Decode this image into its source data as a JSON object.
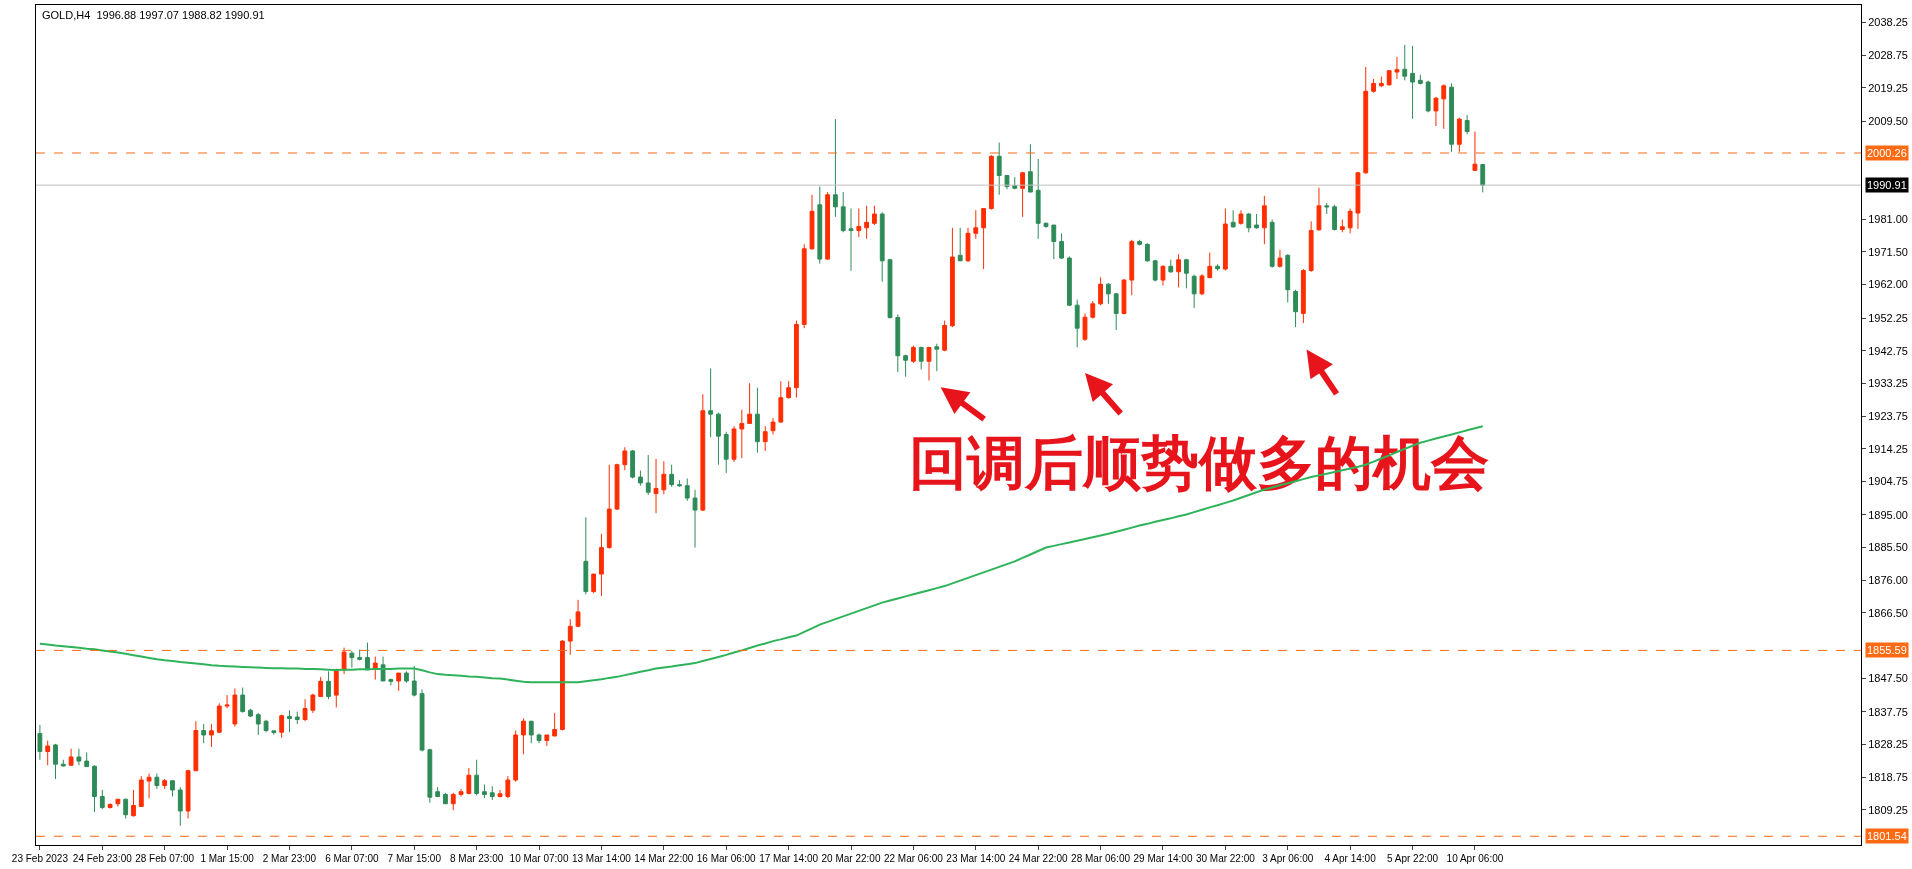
{
  "chart_data": {
    "type": "candlestick",
    "title": "GOLD,H4  1996.88 1997.07 1988.82 1990.91",
    "annotations": [
      "回调后顺势做多的机会"
    ],
    "categories": [
      "23 Feb 2023",
      null,
      null,
      null,
      null,
      null,
      null,
      null,
      "24 Feb 23:00",
      null,
      null,
      null,
      null,
      null,
      null,
      null,
      "28 Feb 07:00",
      null,
      null,
      null,
      null,
      null,
      null,
      null,
      "1 Mar 15:00",
      null,
      null,
      null,
      null,
      null,
      null,
      null,
      "2 Mar 23:00",
      null,
      null,
      null,
      null,
      null,
      null,
      null,
      "6 Mar 07:00",
      null,
      null,
      null,
      null,
      null,
      null,
      null,
      "7 Mar 15:00",
      null,
      null,
      null,
      null,
      null,
      null,
      null,
      "8 Mar 23:00",
      null,
      null,
      null,
      null,
      null,
      null,
      null,
      "10 Mar 07:00",
      null,
      null,
      null,
      null,
      null,
      null,
      null,
      "13 Mar 14:00",
      null,
      null,
      null,
      null,
      null,
      null,
      null,
      "14 Mar 22:00",
      null,
      null,
      null,
      null,
      null,
      null,
      null,
      "16 Mar 06:00",
      null,
      null,
      null,
      null,
      null,
      null,
      null,
      "17 Mar 14:00",
      null,
      null,
      null,
      null,
      null,
      null,
      null,
      "20 Mar 22:00",
      null,
      null,
      null,
      null,
      null,
      null,
      null,
      "22 Mar 06:00",
      null,
      null,
      null,
      null,
      null,
      null,
      null,
      "23 Mar 14:00",
      null,
      null,
      null,
      null,
      null,
      null,
      null,
      "24 Mar 22:00",
      null,
      null,
      null,
      null,
      null,
      null,
      null,
      "28 Mar 06:00",
      null,
      null,
      null,
      null,
      null,
      null,
      null,
      "29 Mar 14:00",
      null,
      null,
      null,
      null,
      null,
      null,
      null,
      "30 Mar 22:00",
      null,
      null,
      null,
      null,
      null,
      null,
      null,
      "3 Apr 06:00",
      null,
      null,
      null,
      null,
      null,
      null,
      null,
      "4 Apr 14:00",
      null,
      null,
      null,
      null,
      null,
      null,
      null,
      "5 Apr 22:00",
      null,
      null,
      null,
      null,
      null,
      null,
      null,
      "10 Apr 06:00",
      null,
      null,
      null,
      null,
      null,
      null,
      null,
      null,
      null,
      null,
      null,
      null,
      null,
      null,
      null,
      null,
      null,
      null,
      null,
      null,
      null,
      null,
      null,
      null,
      null,
      null,
      null,
      null,
      null,
      null,
      null,
      null,
      null,
      null,
      null,
      null,
      null,
      null,
      null,
      null,
      null,
      null,
      null,
      null,
      null,
      null,
      null,
      null,
      null
    ],
    "ohlc": [
      [
        1831.4,
        1833.9,
        1823.8,
        1826.2
      ],
      [
        1826.2,
        1829.4,
        1822.2,
        1827.8
      ],
      [
        1828.1,
        1828.4,
        1818.2,
        1822.5
      ],
      [
        1822.5,
        1823.8,
        1821.8,
        1822.0
      ],
      [
        1822.2,
        1827.0,
        1822.0,
        1824.6
      ],
      [
        1824.6,
        1827.0,
        1822.2,
        1823.4
      ],
      [
        1823.4,
        1825.9,
        1821.8,
        1821.8
      ],
      [
        1821.9,
        1822.2,
        1808.6,
        1813.1
      ],
      [
        1813.1,
        1815.0,
        1809.4,
        1809.9
      ],
      [
        1809.9,
        1811.1,
        1809.6,
        1810.8
      ],
      [
        1811.0,
        1812.4,
        1810.2,
        1812.3
      ],
      [
        1812.3,
        1812.5,
        1806.7,
        1807.8
      ],
      [
        1807.5,
        1815.0,
        1807.3,
        1810.5
      ],
      [
        1810.2,
        1819.0,
        1810.2,
        1817.9
      ],
      [
        1817.6,
        1819.8,
        1812.6,
        1818.7
      ],
      [
        1818.7,
        1819.8,
        1815.3,
        1816.3
      ],
      [
        1816.3,
        1818.2,
        1815.3,
        1817.7
      ],
      [
        1817.7,
        1817.7,
        1813.1,
        1815.0
      ],
      [
        1815.0,
        1815.8,
        1804.6,
        1808.9
      ],
      [
        1808.9,
        1820.9,
        1806.7,
        1820.6
      ],
      [
        1820.6,
        1835.0,
        1820.6,
        1832.3
      ],
      [
        1832.3,
        1834.2,
        1828.6,
        1831.0
      ],
      [
        1831.0,
        1834.2,
        1827.5,
        1832.2
      ],
      [
        1831.8,
        1840.2,
        1831.5,
        1839.4
      ],
      [
        1839.4,
        1842.6,
        1838.8,
        1839.7
      ],
      [
        1834.2,
        1844.5,
        1833.4,
        1842.6
      ],
      [
        1842.6,
        1844.8,
        1837.5,
        1837.8
      ],
      [
        1838.2,
        1838.6,
        1836.2,
        1836.5
      ],
      [
        1836.9,
        1837.4,
        1831.0,
        1834.2
      ],
      [
        1835.0,
        1835.4,
        1831.8,
        1832.3
      ],
      [
        1832.2,
        1832.2,
        1831.1,
        1831.7
      ],
      [
        1831.8,
        1836.9,
        1830.2,
        1836.6
      ],
      [
        1836.4,
        1838.2,
        1831.8,
        1835.8
      ],
      [
        1836.2,
        1837.8,
        1834.2,
        1835.5
      ],
      [
        1835.5,
        1841.4,
        1835.0,
        1838.7
      ],
      [
        1838.2,
        1843.0,
        1837.4,
        1842.6
      ],
      [
        1842.2,
        1847.9,
        1842.0,
        1846.6
      ],
      [
        1846.6,
        1849.5,
        1841.4,
        1842.2
      ],
      [
        1842.6,
        1850.3,
        1839.0,
        1849.9
      ],
      [
        1849.9,
        1856.4,
        1848.7,
        1855.1
      ],
      [
        1854.8,
        1855.4,
        1850.6,
        1853.5
      ],
      [
        1853.5,
        1855.8,
        1852.7,
        1853.0
      ],
      [
        1853.5,
        1857.9,
        1849.9,
        1849.9
      ],
      [
        1850.3,
        1853.8,
        1847.1,
        1851.9
      ],
      [
        1851.4,
        1853.8,
        1846.7,
        1846.7
      ],
      [
        1847.1,
        1847.4,
        1845.4,
        1846.6
      ],
      [
        1846.7,
        1849.0,
        1843.8,
        1849.0
      ],
      [
        1849.0,
        1849.5,
        1846.2,
        1846.7
      ],
      [
        1846.7,
        1851.1,
        1842.2,
        1842.6
      ],
      [
        1843.0,
        1844.2,
        1826.2,
        1826.6
      ],
      [
        1826.7,
        1827.0,
        1811.3,
        1812.9
      ],
      [
        1814.5,
        1815.8,
        1812.9,
        1813.1
      ],
      [
        1813.7,
        1814.2,
        1810.9,
        1811.0
      ],
      [
        1811.0,
        1814.2,
        1809.1,
        1813.7
      ],
      [
        1813.7,
        1815.3,
        1813.1,
        1814.5
      ],
      [
        1814.0,
        1821.4,
        1813.7,
        1819.3
      ],
      [
        1819.3,
        1823.8,
        1813.4,
        1814.0
      ],
      [
        1814.5,
        1816.6,
        1812.6,
        1813.7
      ],
      [
        1814.2,
        1816.1,
        1812.1,
        1813.1
      ],
      [
        1813.1,
        1815.0,
        1812.8,
        1813.9
      ],
      [
        1813.1,
        1819.0,
        1812.6,
        1817.9
      ],
      [
        1817.9,
        1832.3,
        1817.4,
        1831.0
      ],
      [
        1831.0,
        1835.8,
        1825.4,
        1835.0
      ],
      [
        1835.0,
        1835.0,
        1828.6,
        1831.0
      ],
      [
        1831.0,
        1831.4,
        1828.6,
        1829.4
      ],
      [
        1829.4,
        1831.0,
        1827.8,
        1831.0
      ],
      [
        1830.7,
        1837.4,
        1830.7,
        1832.6
      ],
      [
        1832.6,
        1858.6,
        1832.3,
        1858.3
      ],
      [
        1858.3,
        1864.7,
        1854.3,
        1862.6
      ],
      [
        1862.6,
        1870.3,
        1862.3,
        1866.8
      ],
      [
        1881.5,
        1894.3,
        1871.9,
        1872.7
      ],
      [
        1872.7,
        1877.8,
        1872.2,
        1877.8
      ],
      [
        1877.8,
        1889.5,
        1871.4,
        1885.5
      ],
      [
        1885.5,
        1909.6,
        1885.2,
        1896.7
      ],
      [
        1896.7,
        1909.9,
        1896.4,
        1909.6
      ],
      [
        1909.6,
        1914.7,
        1908.0,
        1913.6
      ],
      [
        1913.6,
        1913.9,
        1905.6,
        1906.0
      ],
      [
        1906.0,
        1907.9,
        1903.5,
        1904.3
      ],
      [
        1904.3,
        1912.4,
        1900.8,
        1901.6
      ],
      [
        1901.2,
        1911.3,
        1895.5,
        1902.7
      ],
      [
        1902.3,
        1910.6,
        1901.0,
        1906.8
      ],
      [
        1906.8,
        1909.6,
        1903.2,
        1903.8
      ],
      [
        1903.8,
        1905.1,
        1903.2,
        1903.5
      ],
      [
        1903.5,
        1905.6,
        1899.1,
        1899.9
      ],
      [
        1899.9,
        1902.3,
        1885.5,
        1896.4
      ],
      [
        1896.4,
        1930.1,
        1896.1,
        1925.3
      ],
      [
        1925.3,
        1937.6,
        1917.6,
        1924.3
      ],
      [
        1924.3,
        1924.8,
        1909.6,
        1917.9
      ],
      [
        1918.4,
        1919.2,
        1907.2,
        1911.2
      ],
      [
        1911.2,
        1920.8,
        1910.4,
        1920.0
      ],
      [
        1920.0,
        1925.6,
        1911.5,
        1921.6
      ],
      [
        1921.6,
        1933.3,
        1921.6,
        1924.3
      ],
      [
        1924.3,
        1932.0,
        1913.1,
        1916.3
      ],
      [
        1916.3,
        1920.8,
        1913.6,
        1919.2
      ],
      [
        1919.5,
        1923.2,
        1918.4,
        1922.0
      ],
      [
        1922.0,
        1933.9,
        1921.9,
        1929.1
      ],
      [
        1929.1,
        1933.9,
        1928.8,
        1932.0
      ],
      [
        1932.0,
        1951.5,
        1929.1,
        1950.4
      ],
      [
        1950.4,
        1973.7,
        1949.3,
        1972.4
      ],
      [
        1972.4,
        1988.1,
        1972.1,
        1983.3
      ],
      [
        1985.2,
        1990.5,
        1968.1,
        1969.4
      ],
      [
        1969.4,
        1988.9,
        1969.2,
        1988.1
      ],
      [
        1988.1,
        2010.1,
        1981.7,
        1984.6
      ],
      [
        1984.6,
        1988.9,
        1977.2,
        1977.7
      ],
      [
        1978.2,
        1984.1,
        1966.0,
        1977.7
      ],
      [
        1977.7,
        1984.1,
        1975.8,
        1978.9
      ],
      [
        1978.5,
        1984.9,
        1975.3,
        1980.1
      ],
      [
        1979.8,
        1984.9,
        1979.3,
        1982.5
      ],
      [
        1982.5,
        1983.0,
        1962.8,
        1968.9
      ],
      [
        1969.2,
        1969.5,
        1952.1,
        1952.4
      ],
      [
        1952.4,
        1953.3,
        1936.5,
        1941.3
      ],
      [
        1941.3,
        1941.6,
        1935.2,
        1940.0
      ],
      [
        1939.7,
        1944.2,
        1939.2,
        1943.7
      ],
      [
        1943.7,
        1943.9,
        1937.3,
        1939.7
      ],
      [
        1939.7,
        1943.9,
        1934.1,
        1943.7
      ],
      [
        1943.9,
        1944.8,
        1936.8,
        1943.2
      ],
      [
        1942.9,
        1951.5,
        1942.6,
        1950.1
      ],
      [
        1950.0,
        1978.5,
        1949.6,
        1970.0
      ],
      [
        1970.5,
        1978.5,
        1968.9,
        1968.9
      ],
      [
        1968.9,
        1978.5,
        1968.6,
        1976.9
      ],
      [
        1976.9,
        1983.6,
        1975.3,
        1978.5
      ],
      [
        1978.5,
        1984.1,
        1966.5,
        1984.1
      ],
      [
        1984.1,
        1999.6,
        1983.8,
        1999.3
      ],
      [
        1999.3,
        2003.3,
        1988.1,
        1993.7
      ],
      [
        1993.7,
        1993.7,
        1989.7,
        1990.5
      ],
      [
        1990.8,
        1993.2,
        1989.7,
        1990.0
      ],
      [
        1990.0,
        1994.8,
        1981.7,
        1994.5
      ],
      [
        1994.8,
        2002.8,
        1988.9,
        1988.9
      ],
      [
        1989.4,
        1998.5,
        1975.3,
        1979.8
      ],
      [
        1979.8,
        1980.1,
        1978.5,
        1978.9
      ],
      [
        1979.3,
        1979.3,
        1969.4,
        1974.5
      ],
      [
        1974.5,
        1976.9,
        1969.4,
        1969.7
      ],
      [
        1969.7,
        1970.2,
        1955.7,
        1956.0
      ],
      [
        1956.0,
        1957.6,
        1943.7,
        1949.3
      ],
      [
        1946.1,
        1953.6,
        1945.6,
        1952.5
      ],
      [
        1952.5,
        1957.2,
        1952.1,
        1956.4
      ],
      [
        1956.4,
        1964.1,
        1956.0,
        1962.1
      ],
      [
        1962.1,
        1962.4,
        1956.4,
        1959.3
      ],
      [
        1959.3,
        1959.6,
        1948.8,
        1953.6
      ],
      [
        1953.6,
        1963.6,
        1953.3,
        1963.3
      ],
      [
        1963.3,
        1975.0,
        1958.9,
        1974.5
      ],
      [
        1974.5,
        1975.0,
        1973.4,
        1973.7
      ],
      [
        1973.7,
        1974.0,
        1968.6,
        1968.9
      ],
      [
        1968.9,
        1969.2,
        1962.9,
        1963.3
      ],
      [
        1963.3,
        1967.6,
        1961.7,
        1967.3
      ],
      [
        1967.3,
        1969.2,
        1965.4,
        1965.7
      ],
      [
        1965.7,
        1970.8,
        1961.2,
        1969.2
      ],
      [
        1969.2,
        1969.5,
        1960.9,
        1965.3
      ],
      [
        1964.4,
        1964.9,
        1955.2,
        1959.3
      ],
      [
        1959.3,
        1965.0,
        1958.9,
        1964.5
      ],
      [
        1964.0,
        1971.3,
        1964.0,
        1967.3
      ],
      [
        1967.3,
        1967.9,
        1966.0,
        1966.6
      ],
      [
        1966.5,
        1984.1,
        1966.1,
        1979.6
      ],
      [
        1980.1,
        1983.6,
        1978.5,
        1978.8
      ],
      [
        1979.8,
        1983.6,
        1979.4,
        1982.5
      ],
      [
        1982.5,
        1982.8,
        1977.2,
        1978.5
      ],
      [
        1979.3,
        1982.5,
        1978.2,
        1978.5
      ],
      [
        1978.5,
        1987.8,
        1973.7,
        1984.9
      ],
      [
        1980.1,
        1980.9,
        1966.9,
        1967.3
      ],
      [
        1967.3,
        1972.1,
        1966.9,
        1969.7
      ],
      [
        1970.5,
        1970.8,
        1956.8,
        1960.5
      ],
      [
        1960.0,
        1960.5,
        1949.6,
        1954.1
      ],
      [
        1953.6,
        1966.5,
        1950.8,
        1966.1
      ],
      [
        1966.1,
        1980.4,
        1965.7,
        1977.7
      ],
      [
        1977.9,
        1990.2,
        1977.7,
        1984.9
      ],
      [
        1984.9,
        1985.7,
        1982.5,
        1984.6
      ],
      [
        1984.6,
        1985.2,
        1977.7,
        1978.0
      ],
      [
        1978.0,
        1980.9,
        1977.2,
        1978.8
      ],
      [
        1978.5,
        1984.1,
        1976.9,
        1983.3
      ],
      [
        1982.8,
        1994.8,
        1978.2,
        1994.5
      ],
      [
        1994.5,
        2025.3,
        1994.2,
        2018.2
      ],
      [
        2018.2,
        2021.8,
        2017.8,
        2020.5
      ],
      [
        2019.8,
        2022.5,
        2019.4,
        2020.5
      ],
      [
        2020.1,
        2024.2,
        2019.8,
        2024.2
      ],
      [
        2023.8,
        2028.2,
        2021.8,
        2024.5
      ],
      [
        2024.6,
        2031.7,
        2021.4,
        2022.6
      ],
      [
        2023.4,
        2031.4,
        2010.2,
        2020.9
      ],
      [
        2021.4,
        2023.0,
        2020.2,
        2020.5
      ],
      [
        2020.9,
        2021.3,
        2012.1,
        2012.5
      ],
      [
        2012.5,
        2016.6,
        2008.1,
        2016.2
      ],
      [
        2016.0,
        2020.2,
        2007.3,
        2019.8
      ],
      [
        2019.4,
        2020.5,
        2000.6,
        2002.8
      ],
      [
        2002.8,
        2010.5,
        2000.6,
        2010.1
      ],
      [
        2009.7,
        2011.3,
        2005.7,
        2006.5
      ],
      [
        1995.2,
        2006.5,
        1995.0,
        1997.0
      ],
      [
        1996.88,
        1997.07,
        1988.82,
        1990.91
      ],
      null,
      null,
      null,
      null,
      null,
      null,
      null,
      null,
      null,
      null,
      null,
      null,
      null,
      null,
      null,
      null,
      null,
      null,
      null,
      null,
      null,
      null,
      null,
      null,
      null,
      null,
      null,
      null,
      null,
      null,
      null,
      null,
      null,
      null,
      null,
      null,
      null,
      null,
      null,
      null,
      null,
      null,
      null,
      null,
      null,
      null,
      null,
      null
    ],
    "series": [
      {
        "type": "line",
        "color": "#2fb35a",
        "values": [
          1857.5,
          1857.3,
          1857.0,
          1856.8,
          1856.6,
          1856.4,
          1856.1,
          1855.9,
          1855.6,
          1855.3,
          1855.0,
          1854.6,
          1854.2,
          1853.8,
          1853.4,
          1853.0,
          1852.7,
          1852.5,
          1852.2,
          1852.0,
          1851.8,
          1851.6,
          1851.3,
          1851.1,
          1851.0,
          1850.9,
          1850.8,
          1850.7,
          1850.6,
          1850.5,
          1850.4,
          1850.4,
          1850.3,
          1850.3,
          1850.2,
          1850.2,
          1850.1,
          1850.0,
          1849.9,
          1850.0,
          1850.0,
          1850.1,
          1850.1,
          1850.2,
          1850.2,
          1850.2,
          1850.3,
          1850.3,
          1850.3,
          1849.8,
          1849.2,
          1848.7,
          1848.5,
          1848.4,
          1848.2,
          1848.0,
          1847.9,
          1847.7,
          1847.5,
          1847.4,
          1847.1,
          1846.8,
          1846.5,
          1846.3,
          1846.3,
          1846.3,
          1846.3,
          1846.3,
          1846.3,
          1846.3,
          1846.6,
          1846.9,
          1847.2,
          1847.6,
          1847.9,
          1848.4,
          1848.9,
          1849.4,
          1849.8,
          1850.3,
          1850.6,
          1850.9,
          1851.3,
          1851.6,
          1851.9,
          1852.5,
          1853.1,
          1853.7,
          1854.3,
          1855.0,
          1855.6,
          1856.3,
          1857.0,
          1857.6,
          1858.3,
          1858.8,
          1859.4,
          1859.9,
          1861.0,
          1862.0,
          1863.1,
          1863.9,
          1864.7,
          1865.5,
          1866.3,
          1867.1,
          1867.9,
          1868.7,
          1869.5,
          1870.1,
          1870.7,
          1871.3,
          1871.9,
          1872.5,
          1873.1,
          1873.7,
          1874.3,
          1875.1,
          1875.9,
          1876.7,
          1877.5,
          1878.3,
          1879.1,
          1879.9,
          1880.7,
          1881.5,
          1882.5,
          1883.5,
          1884.5,
          1885.5,
          1886.0,
          1886.5,
          1887.0,
          1887.5,
          1888.0,
          1888.5,
          1889.0,
          1889.5,
          1890.1,
          1890.7,
          1891.3,
          1891.9,
          1892.4,
          1893.0,
          1893.5,
          1894.0,
          1894.6,
          1895.1,
          1895.8,
          1896.5,
          1897.2,
          1897.8,
          1898.5,
          1899.2,
          1900.0,
          1900.8,
          1901.6,
          1902.4,
          1903.0,
          1903.6,
          1904.2,
          1904.8,
          1905.4,
          1906.0,
          1906.5,
          1907.0,
          1907.5,
          1908.0,
          1908.5,
          1909.0,
          1909.6,
          1910.5,
          1911.4,
          1912.3,
          1913.3,
          1914.2,
          1915.1,
          1916.0,
          1916.6,
          1917.2,
          1917.8,
          1918.4,
          1919.0,
          1919.6,
          1920.2,
          1920.8,
          null,
          null,
          null,
          null,
          null,
          null,
          null,
          null,
          null,
          null,
          null,
          null,
          null,
          null,
          null,
          null,
          null,
          null,
          null,
          null,
          null,
          null,
          null,
          null,
          null,
          null,
          null,
          null,
          null,
          null,
          null,
          null,
          null,
          null,
          null,
          null,
          null,
          null,
          null,
          null,
          null,
          null,
          null,
          null,
          null,
          null,
          null,
          null
        ]
      }
    ],
    "ylim": [
      1799.0,
      2043.3
    ],
    "yticks": [
      {
        "value": 2038.25,
        "label": "2038.25"
      },
      {
        "value": 2028.75,
        "label": "2028.75"
      },
      {
        "value": 2019.25,
        "label": "2019.25"
      },
      {
        "value": 2009.5,
        "label": "2009.50"
      },
      {
        "value": 1981.0,
        "label": "1981.00"
      },
      {
        "value": 1971.5,
        "label": "1971.50"
      },
      {
        "value": 1962.0,
        "label": "1962.00"
      },
      {
        "value": 1952.25,
        "label": "1952.25"
      },
      {
        "value": 1942.75,
        "label": "1942.75"
      },
      {
        "value": 1933.25,
        "label": "1933.25"
      },
      {
        "value": 1923.75,
        "label": "1923.75"
      },
      {
        "value": 1914.25,
        "label": "1914.25"
      },
      {
        "value": 1904.75,
        "label": "1904.75"
      },
      {
        "value": 1895.0,
        "label": "1895.00"
      },
      {
        "value": 1885.5,
        "label": "1885.50"
      },
      {
        "value": 1876.0,
        "label": "1876.00"
      },
      {
        "value": 1866.5,
        "label": "1866.50"
      },
      {
        "value": 1847.5,
        "label": "1847.50"
      },
      {
        "value": 1837.75,
        "label": "1837.75"
      },
      {
        "value": 1828.25,
        "label": "1828.25"
      },
      {
        "value": 1818.75,
        "label": "1818.75"
      },
      {
        "value": 1809.25,
        "label": "1809.25"
      }
    ],
    "ref_lines": [
      {
        "axis": "y",
        "value": 2000.26,
        "label": "2000.26",
        "color": "#ff6a13",
        "line_style": "dashed"
      },
      {
        "axis": "y",
        "value": 1990.91,
        "label": "1990.91",
        "color": "#c0c0c0",
        "line_style": "solid"
      },
      {
        "axis": "y",
        "value": 1855.59,
        "label": "1855.59",
        "color": "#ff6a13",
        "line_style": "dashed"
      },
      {
        "axis": "y",
        "value": 1801.54,
        "label": "1801.54",
        "color": "#ff6a13",
        "line_style": "dashed"
      }
    ],
    "grid": false
  }
}
